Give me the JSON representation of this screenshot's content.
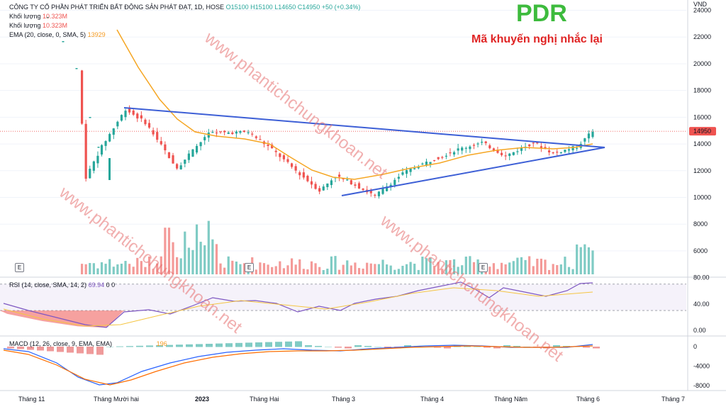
{
  "header": {
    "symbol_line": "CÔNG TY CỔ PHẦN PHÁT TRIỂN BẤT ĐỘNG SẢN PHÁT ĐẠT, 1D, HOSE",
    "ohlc": {
      "o": "O15100",
      "h": "H15100",
      "l": "L14650",
      "c": "C14950",
      "chg": "+50 (+0.34%)"
    },
    "vol1_label": "Khối lượng",
    "vol1_value": "10.323M",
    "vol2_label": "Khối lượng",
    "vol2_value": "10.323M",
    "ema_label": "EMA (20, close, 0, SMA, 5)",
    "ema_value": "13929"
  },
  "overlay": {
    "ticker": "PDR",
    "subtitle": "Mã khuyến nghị nhắc lại",
    "ticker_color": "#3dbb3d",
    "subtitle_color": "#e02424",
    "watermark": "www.phantichchungkhoan.net"
  },
  "price_axis": {
    "unit": "VND",
    "ticks": [
      "24000",
      "22000",
      "20000",
      "18000",
      "16000",
      "14000",
      "12000",
      "10000",
      "8000",
      "6000"
    ],
    "last_price": "14950"
  },
  "rsi": {
    "label": "RSI (14, close, SMA, 14, 2)",
    "value": "69.94",
    "value2": "0",
    "value3": "0",
    "ticks": [
      "80.00",
      "40.00",
      "0.00"
    ]
  },
  "macd": {
    "label": "MACD (12, 26, close, 9, EMA, EMA)",
    "value": "196",
    "ticks": [
      "0",
      "-4000",
      "-8000"
    ]
  },
  "time_axis": [
    "Tháng 11",
    "Tháng Mười hai",
    "2023",
    "Tháng Hai",
    "Tháng 3",
    "Tháng 4",
    "Tháng Năm",
    "Tháng 6",
    "Tháng 7"
  ],
  "event_badge": "E",
  "colors": {
    "up": "#26a69a",
    "down": "#ef5350",
    "ema": "#f5a623",
    "trend": "#3d5fd6",
    "rsi": "#7e57c2",
    "macd": "#2962ff",
    "signal": "#ff6d00"
  },
  "chart_data": {
    "type": "line",
    "title": "",
    "price_range": [
      10000,
      24000
    ],
    "rsi_range": [
      0,
      80
    ],
    "macd_range": [
      -8000,
      0
    ],
    "last_close": 14950,
    "ema_last": 13929,
    "trendline_upper": [
      {
        "date": "Tháng Mười hai",
        "price": 16600
      },
      {
        "date": "Tháng 6",
        "price": 13700
      }
    ],
    "trendline_lower": [
      {
        "date": "Tháng 3",
        "price": 10000
      },
      {
        "date": "Tháng 6",
        "price": 13700
      }
    ],
    "series": [
      {
        "name": "EMA (20, close, 0, SMA, 5)",
        "values": [
          21000,
          18500,
          16500,
          15200,
          14300,
          13700,
          13300,
          12800,
          11200,
          11600,
          12300,
          12900,
          13300,
          13929
        ]
      }
    ]
  }
}
